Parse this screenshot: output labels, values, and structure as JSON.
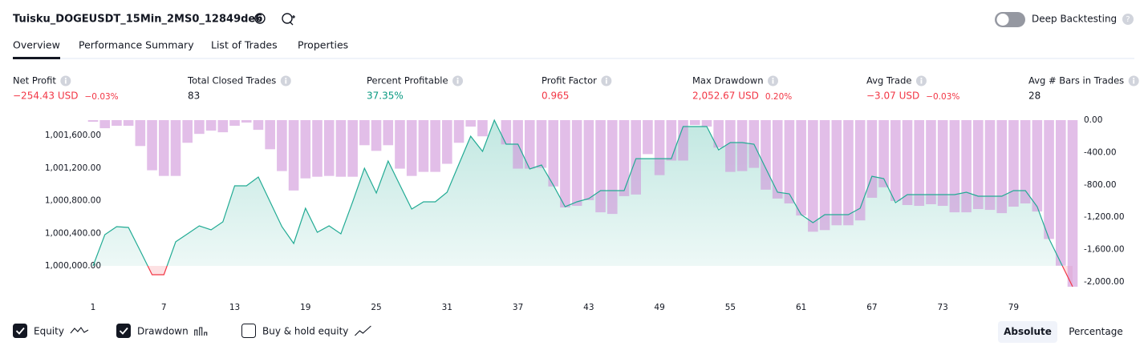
{
  "header": {
    "title": "Tuisku_DOGEUSDT_15Min_2MS0_12849de6",
    "toggle": "Deep Backtesting",
    "toggle_on": false
  },
  "tabs": [
    "Overview",
    "Performance Summary",
    "List of Trades",
    "Properties"
  ],
  "metrics": [
    {
      "label": "Net Profit",
      "value": "−254.43 USD",
      "percent": "−0.03%",
      "color": "#f23645"
    },
    {
      "label": "Total Closed Trades",
      "value": "83",
      "color": "#131722"
    },
    {
      "label": "Percent Profitable",
      "value": "37.35%",
      "color": "#089981"
    },
    {
      "label": "Profit Factor",
      "value": "0.965",
      "color": "#f23645"
    },
    {
      "label": "Max Drawdown",
      "value": "2,052.67 USD",
      "percent": "0.20%",
      "color": "#f23645"
    },
    {
      "label": "Avg Trade",
      "value": "−3.07 USD",
      "percent": "−0.03%",
      "color": "#f23645"
    },
    {
      "label": "Avg # Bars in Trades",
      "value": "28",
      "color": "#131722"
    }
  ],
  "chart_data": {
    "type": "line",
    "x": [
      1,
      2,
      3,
      4,
      5,
      6,
      7,
      8,
      9,
      10,
      11,
      12,
      13,
      14,
      15,
      16,
      17,
      18,
      19,
      20,
      21,
      22,
      23,
      24,
      25,
      26,
      27,
      28,
      29,
      30,
      31,
      32,
      33,
      34,
      35,
      36,
      37,
      38,
      39,
      40,
      41,
      42,
      43,
      44,
      45,
      46,
      47,
      48,
      49,
      50,
      51,
      52,
      53,
      54,
      55,
      56,
      57,
      58,
      59,
      60,
      61,
      62,
      63,
      64,
      65,
      66,
      67,
      68,
      69,
      70,
      71,
      72,
      73,
      74,
      75,
      76,
      77,
      78,
      79,
      80,
      81,
      82,
      83,
      84
    ],
    "series": [
      {
        "name": "Equity",
        "color": "#22ab94",
        "negative_color": "#f23645",
        "values": [
          1000000,
          1000383,
          1000481,
          1000471,
          1000186,
          999892,
          999892,
          1000295,
          1000393,
          1000491,
          1000442,
          1000540,
          1000982,
          1000982,
          1001090,
          1000785,
          1000481,
          1000275,
          1000707,
          1000412,
          1000491,
          1000393,
          1000785,
          1001197,
          1000893,
          1001286,
          1000991,
          1000697,
          1000785,
          1000785,
          1000903,
          1001247,
          1001590,
          1001404,
          1001787,
          1001492,
          1001492,
          1001188,
          1001237,
          1000991,
          1000726,
          1000785,
          1000825,
          1000923,
          1000923,
          1000923,
          1001315,
          1001315,
          1001315,
          1001315,
          1001708,
          1001708,
          1001708,
          1001423,
          1001512,
          1001512,
          1001492,
          1001197,
          1000903,
          1000884,
          1000628,
          1000530,
          1000628,
          1000628,
          1000628,
          1000707,
          1001099,
          1001070,
          1000776,
          1000874,
          1000874,
          1000874,
          1000874,
          1000874,
          1000903,
          1000854,
          1000854,
          1000854,
          1000923,
          1000923,
          1000726,
          1000334,
          1000039,
          999746
        ]
      },
      {
        "name": "Drawdown",
        "type": "bar",
        "axis": "y2",
        "color": "#ce93d8",
        "values": [
          -20,
          -100,
          -70,
          -70,
          -320,
          -620,
          -690,
          -690,
          -280,
          -170,
          -130,
          -150,
          -70,
          -30,
          -120,
          -360,
          -630,
          -870,
          -720,
          -700,
          -690,
          -700,
          -700,
          -310,
          -380,
          -310,
          -600,
          -690,
          -640,
          -640,
          -540,
          -280,
          -80,
          -200,
          0,
          -300,
          -600,
          -600,
          -590,
          -820,
          -1080,
          -1060,
          -990,
          -1140,
          -1160,
          -940,
          -920,
          -420,
          -680,
          -500,
          -500,
          -60,
          -80,
          -340,
          -640,
          -630,
          -590,
          -860,
          -970,
          -1030,
          -1180,
          -1380,
          -1360,
          -1300,
          -1300,
          -1240,
          -960,
          -830,
          -1000,
          -1050,
          -1060,
          -1040,
          -1060,
          -1140,
          -1140,
          -1100,
          -1110,
          -1150,
          -1070,
          -1030,
          -1130,
          -1470,
          -1800,
          -2060
        ]
      }
    ],
    "xlim": [
      1,
      84
    ],
    "xticks": [
      1,
      7,
      13,
      19,
      25,
      31,
      37,
      43,
      49,
      55,
      61,
      67,
      73,
      79
    ],
    "ylim": [
      999725,
      1001787
    ],
    "yticks": [
      {
        "value": 1000000,
        "label": "1,000,000.00"
      },
      {
        "value": 1000400,
        "label": "1,000,400.00"
      },
      {
        "value": 1000800,
        "label": "1,000,800.00"
      },
      {
        "value": 1001200,
        "label": "1,001,200.00"
      },
      {
        "value": 1001600,
        "label": "1,001,600.00"
      }
    ],
    "y2lim": [
      -2080,
      0
    ],
    "y2ticks": [
      {
        "value": 0,
        "label": "0.00"
      },
      {
        "value": -400,
        "label": "-400.00"
      },
      {
        "value": -800,
        "label": "-800.00"
      },
      {
        "value": -1200,
        "label": "-1,200.00"
      },
      {
        "value": -1600,
        "label": "-1,600.00"
      },
      {
        "value": -2000,
        "label": "-2,000.00"
      }
    ]
  },
  "legend": [
    {
      "label": "Equity",
      "checked": true
    },
    {
      "label": "Drawdown",
      "checked": true
    },
    {
      "label": "Buy & hold equity",
      "checked": false
    }
  ],
  "modes": [
    "Absolute",
    "Percentage"
  ]
}
